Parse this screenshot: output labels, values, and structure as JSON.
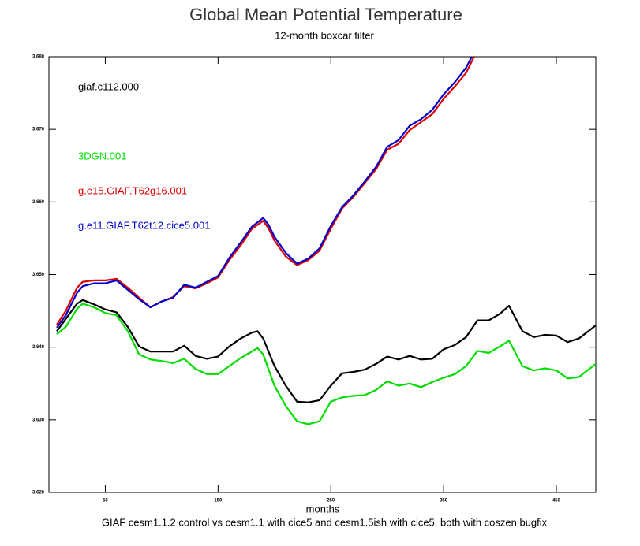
{
  "chart_data": {
    "type": "line",
    "title": "Global Mean Potential Temperature",
    "subtitle": "12-month boxcar filter",
    "x_label": "months",
    "footnote": "GIAF cesm1.1.2 control vs cesm1.1 with cice5 and cesm1.5ish with cice5, both with coszen bugfix",
    "xlim": [
      0,
      485
    ],
    "xticks": [
      50,
      150,
      250,
      350,
      450
    ],
    "ylim": [
      3.62,
      3.68
    ],
    "yticks": [
      {
        "value": 3.62,
        "label": "3.620"
      },
      {
        "value": 3.63,
        "label": "3.630"
      },
      {
        "value": 3.64,
        "label": "3.640"
      },
      {
        "value": 3.65,
        "label": "3.650"
      },
      {
        "value": 3.66,
        "label": "3.660"
      },
      {
        "value": 3.67,
        "label": "3.670"
      },
      {
        "value": 3.68,
        "label": "3.680"
      }
    ],
    "series": [
      {
        "name": "giaf.c112.000",
        "color": "#000000",
        "x": [
          7,
          15,
          25,
          30,
          40,
          50,
          60,
          70,
          80,
          90,
          100,
          110,
          120,
          130,
          140,
          150,
          160,
          170,
          180,
          185,
          190,
          200,
          210,
          220,
          230,
          240,
          250,
          260,
          270,
          280,
          290,
          300,
          310,
          320,
          330,
          340,
          350,
          360,
          370,
          380,
          390,
          400,
          408,
          420,
          430,
          440,
          450,
          460,
          470,
          485
        ],
        "values": [
          3.6422,
          3.6439,
          3.646,
          3.6465,
          3.6459,
          3.6452,
          3.6448,
          3.6428,
          3.6401,
          3.6394,
          3.6394,
          3.6394,
          3.6402,
          3.6388,
          3.6384,
          3.6387,
          3.6401,
          3.6412,
          3.642,
          3.6422,
          3.6412,
          3.6374,
          3.6347,
          3.6325,
          3.6324,
          3.6327,
          3.6347,
          3.6364,
          3.6366,
          3.6369,
          3.6377,
          3.6387,
          3.6383,
          3.6388,
          3.6383,
          3.6384,
          3.6397,
          3.6403,
          3.6414,
          3.6437,
          3.6437,
          3.6446,
          3.6457,
          3.6422,
          3.6414,
          3.6417,
          3.6416,
          3.6407,
          3.6412,
          3.643
        ]
      },
      {
        "name": "3DGN.001",
        "color": "#00dd00",
        "x": [
          7,
          15,
          25,
          30,
          40,
          50,
          60,
          70,
          80,
          90,
          100,
          110,
          120,
          130,
          140,
          150,
          160,
          170,
          180,
          185,
          190,
          200,
          210,
          220,
          230,
          240,
          250,
          260,
          270,
          280,
          290,
          300,
          310,
          320,
          330,
          340,
          350,
          360,
          370,
          380,
          390,
          400,
          408,
          420,
          430,
          440,
          450,
          460,
          470,
          485
        ],
        "values": [
          3.6418,
          3.6428,
          3.6453,
          3.646,
          3.6455,
          3.6447,
          3.6444,
          3.6422,
          3.639,
          3.6383,
          3.6381,
          3.6378,
          3.6384,
          3.637,
          3.6363,
          3.6363,
          3.6374,
          3.6385,
          3.6394,
          3.6399,
          3.639,
          3.6347,
          3.6319,
          3.6298,
          3.6294,
          3.6298,
          3.6325,
          3.6331,
          3.6333,
          3.6334,
          3.6341,
          3.6353,
          3.6347,
          3.635,
          3.6345,
          3.6352,
          3.6358,
          3.6363,
          3.6374,
          3.6395,
          3.6392,
          3.6401,
          3.6409,
          3.6374,
          3.6368,
          3.6371,
          3.6368,
          3.6357,
          3.6359,
          3.6377
        ]
      },
      {
        "name": "g.e15.GIAF.T62g16.001",
        "color": "#dd0000",
        "x": [
          7,
          15,
          25,
          30,
          40,
          50,
          60,
          70,
          80,
          90,
          100,
          110,
          120,
          130,
          140,
          150,
          160,
          170,
          180,
          190,
          195,
          200,
          210,
          220,
          230,
          240,
          250,
          260,
          270,
          280,
          290,
          300,
          310,
          320,
          330,
          340,
          350,
          360,
          370,
          377
        ],
        "values": [
          3.6431,
          3.645,
          3.6482,
          3.649,
          3.6492,
          3.6492,
          3.6494,
          3.6482,
          3.6468,
          3.6455,
          3.6463,
          3.6469,
          3.6484,
          3.6481,
          3.6488,
          3.6496,
          3.652,
          3.654,
          3.6563,
          3.6574,
          3.6563,
          3.6547,
          3.6525,
          3.6513,
          3.652,
          3.6533,
          3.6563,
          3.6591,
          3.6607,
          3.6626,
          3.6645,
          3.6672,
          3.668,
          3.6699,
          3.671,
          3.6721,
          3.6742,
          3.6759,
          3.6778,
          3.68
        ]
      },
      {
        "name": "g.e11.GIAF.T62t12.cice5.001",
        "color": "#0000cc",
        "x": [
          7,
          15,
          25,
          30,
          40,
          50,
          60,
          70,
          80,
          90,
          100,
          110,
          120,
          130,
          140,
          150,
          160,
          170,
          180,
          190,
          195,
          200,
          210,
          220,
          230,
          240,
          250,
          260,
          270,
          280,
          290,
          300,
          310,
          320,
          330,
          340,
          350,
          360,
          370,
          375
        ],
        "values": [
          3.6427,
          3.6444,
          3.6475,
          3.6484,
          3.6488,
          3.6488,
          3.6492,
          3.6479,
          3.6466,
          3.6455,
          3.6463,
          3.6468,
          3.6486,
          3.6482,
          3.649,
          3.6498,
          3.6523,
          3.6544,
          3.6566,
          3.6578,
          3.6568,
          3.6552,
          3.653,
          3.6515,
          3.6522,
          3.6536,
          3.6567,
          3.6593,
          3.6609,
          3.6628,
          3.6648,
          3.6676,
          3.6685,
          3.6705,
          3.6714,
          3.6727,
          3.6748,
          3.6765,
          3.6785,
          3.68
        ]
      }
    ]
  }
}
